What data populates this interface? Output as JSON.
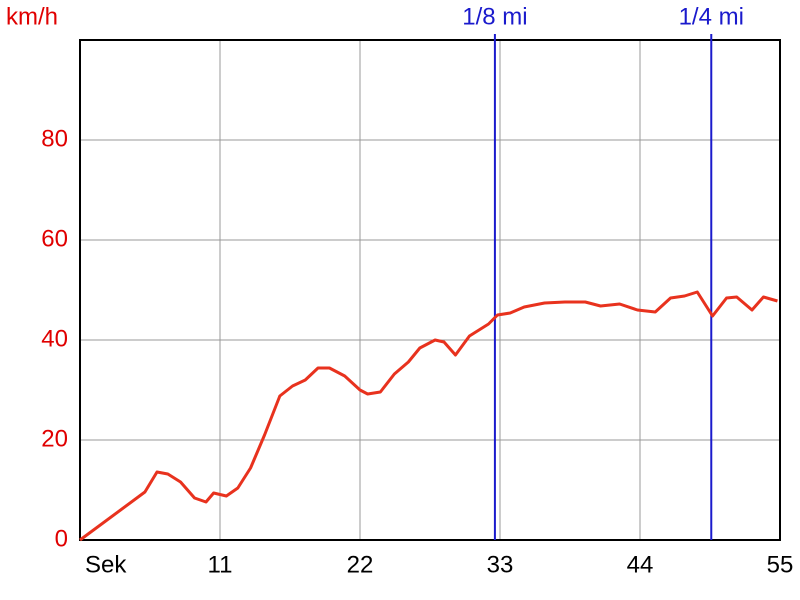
{
  "chart_data": {
    "type": "line",
    "y_label": "km/h",
    "x": [
      0,
      5.1,
      6.05,
      6.9,
      7.9,
      9.0,
      9.9,
      10.5,
      11.5,
      12.4,
      13.4,
      14.5,
      15.7,
      16.7,
      17.7,
      18.7,
      19.6,
      20.8,
      22,
      22.6,
      23.6,
      24.7,
      25.8,
      26.7,
      27.9,
      28.6,
      29.5,
      30.6,
      32.1,
      32.8,
      33.8,
      34.9,
      36.5,
      38.1,
      39.7,
      40.9,
      42.4,
      43.8,
      45.2,
      46.4,
      47.5,
      48.5,
      49.7,
      50.8,
      51.6,
      52.8,
      53.7,
      54.8
    ],
    "series": [
      {
        "color": "#e8321e",
        "values": [
          0,
          9.6,
          13.6,
          13.2,
          11.6,
          8.4,
          7.6,
          9.4,
          8.8,
          10.4,
          14.4,
          21,
          28.8,
          30.8,
          32,
          34.4,
          34.4,
          32.8,
          30,
          29.2,
          29.6,
          33.2,
          35.6,
          38.4,
          40,
          39.6,
          37,
          40.8,
          43.2,
          45,
          45.4,
          46.6,
          47.4,
          47.6,
          47.6,
          46.8,
          47.2,
          46,
          45.6,
          48.4,
          48.8,
          49.6,
          44.8,
          48.4,
          48.6,
          46,
          48.6,
          47.8
        ]
      }
    ],
    "xlim": [
      0,
      55
    ],
    "xticks": [
      {
        "value": 0,
        "label": "Sek"
      },
      11,
      22,
      33,
      44,
      55
    ],
    "ylim": [
      0,
      100
    ],
    "yticks": [
      0,
      20,
      40,
      60,
      80
    ],
    "grid": true,
    "markers": [
      {
        "label": "1/8 mi",
        "x": 32.6
      },
      {
        "label": "1/4 mi",
        "x": 49.6
      }
    ],
    "marker_color": "#1a1acc",
    "y_color": "#e00000"
  }
}
